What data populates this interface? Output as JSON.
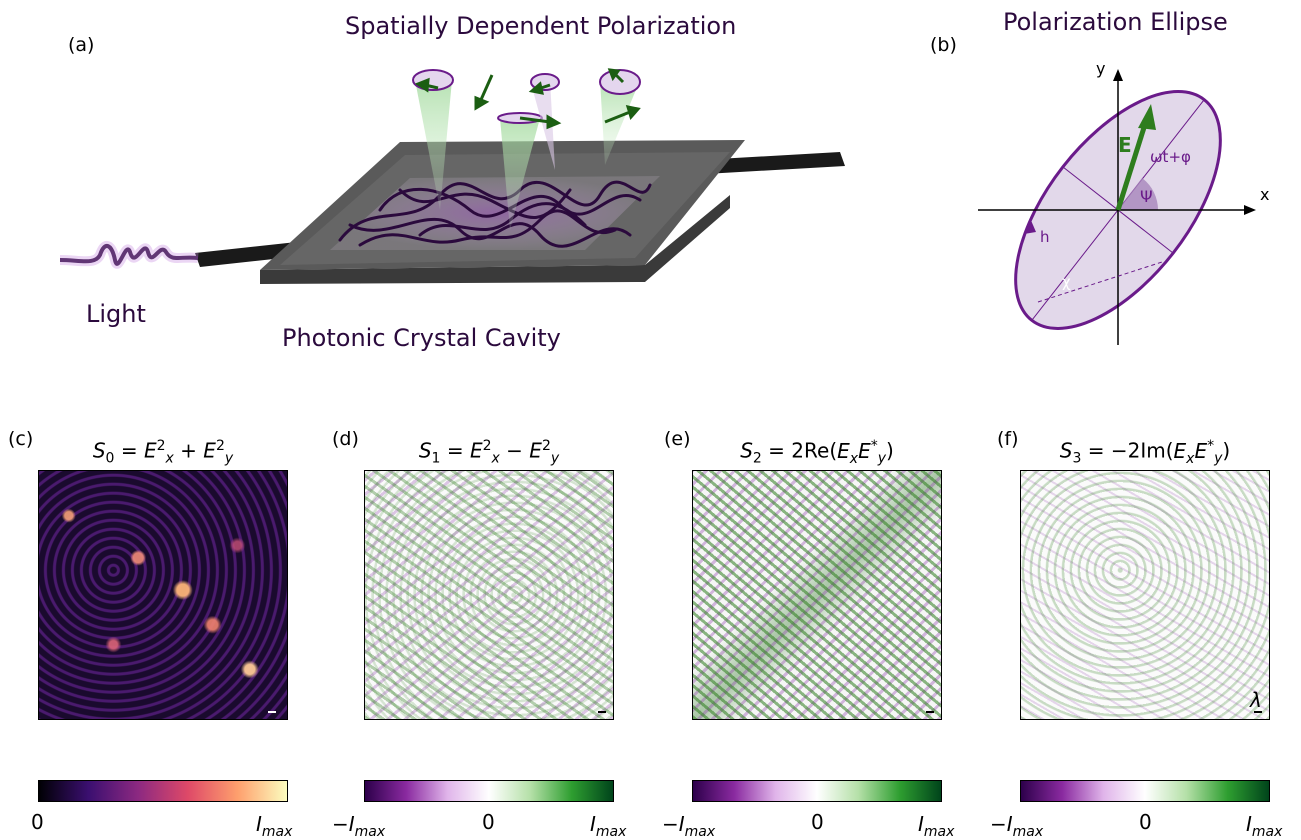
{
  "panel_a": {
    "letter": "(a)",
    "title": "Spatially Dependent Polarization",
    "light_label": "Light",
    "cavity_label": "Photonic Crystal Cavity"
  },
  "panel_b": {
    "letter": "(b)",
    "title": "Polarization Ellipse",
    "axis_x": "x",
    "axis_y": "y",
    "field_label": "E",
    "phase_label": "ωt+φ",
    "angle_psi": "Ψ",
    "angle_chi": "χ",
    "handedness": "h"
  },
  "panels": [
    {
      "letter": "(c)",
      "sym": "S",
      "idx": "0",
      "eq": "= E",
      "rhs": "E_x^2 + E_y^2",
      "cb_left": "0",
      "cb_mid": "",
      "cb_right": "I_max"
    },
    {
      "letter": "(d)",
      "sym": "S",
      "idx": "1",
      "rhs": "E_x^2 − E_y^2",
      "cb_left": "−I_max",
      "cb_mid": "0",
      "cb_right": "I_max"
    },
    {
      "letter": "(e)",
      "sym": "S",
      "idx": "2",
      "rhs": "2Re(E_x E_y^*)",
      "cb_left": "−I_max",
      "cb_mid": "0",
      "cb_right": "I_max"
    },
    {
      "letter": "(f)",
      "sym": "S",
      "idx": "3",
      "rhs": "−2Im(E_x E_y^*)",
      "cb_left": "−I_max",
      "cb_mid": "0",
      "cb_right": "I_max"
    }
  ],
  "scale_label": "λ",
  "colors": {
    "dark_purple": "#2b0a3d",
    "purple": "#6a1b8a",
    "green": "#2e7d1e",
    "ellipse_fill": "#e2d8ea"
  }
}
